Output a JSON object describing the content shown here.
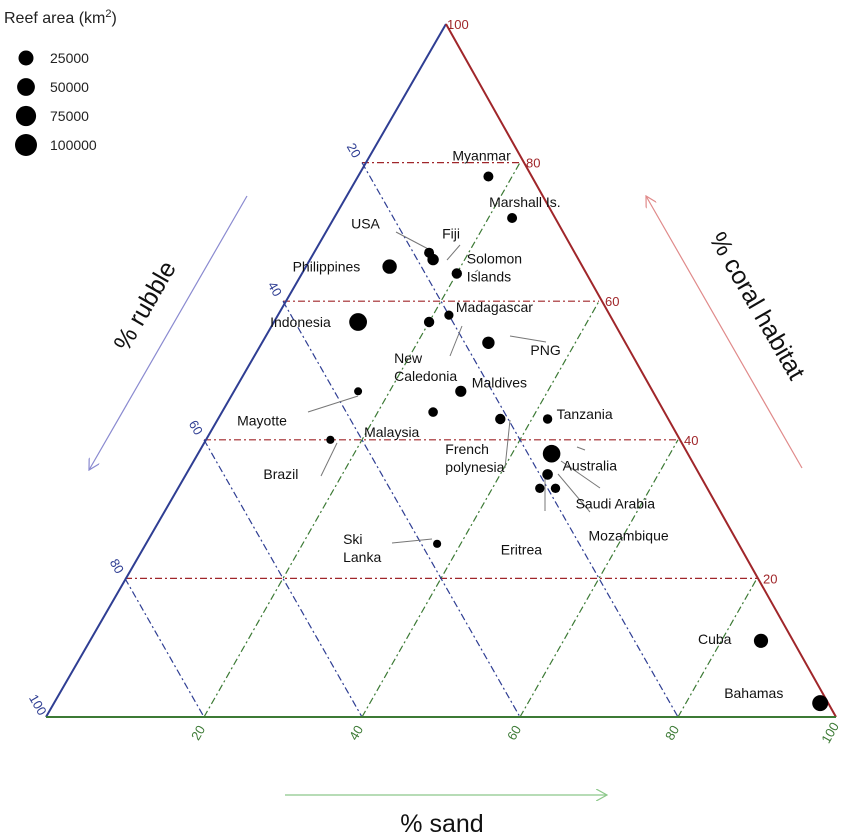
{
  "chart_data": {
    "type": "scatter",
    "subtype": "ternary",
    "title": "",
    "axes": {
      "coral": {
        "label": "% coral habitat",
        "ticks": [
          "20",
          "40",
          "60",
          "80",
          "100"
        ],
        "color": "#a0262a"
      },
      "rubble": {
        "label": "% rubble",
        "ticks": [
          "20",
          "40",
          "60",
          "80",
          "100"
        ],
        "color": "#2f3e93"
      },
      "sand": {
        "label": "% sand",
        "ticks": [
          "20",
          "40",
          "60",
          "80",
          "100"
        ],
        "color": "#3c7a35"
      }
    },
    "legend": {
      "title_prefix": "Reef area (km",
      "title_sup": "2",
      "title_suffix": ")",
      "position": "top-left",
      "entries": [
        {
          "label": "25000",
          "value": 25000
        },
        {
          "label": "50000",
          "value": 50000
        },
        {
          "label": "75000",
          "value": 75000
        },
        {
          "label": "100000",
          "value": 100000
        }
      ]
    },
    "points": [
      {
        "name": [
          "Myanmar"
        ],
        "coral": 78,
        "sand": 17,
        "rubble": 5,
        "area": 5000
      },
      {
        "name": [
          "Marshall Is."
        ],
        "coral": 72,
        "sand": 23,
        "rubble": 5,
        "area": 5000
      },
      {
        "name": [
          "USA"
        ],
        "coral": 67,
        "sand": 15,
        "rubble": 18,
        "area": 5000
      },
      {
        "name": [
          "Fiji"
        ],
        "coral": 66,
        "sand": 16,
        "rubble": 18,
        "area": 10000
      },
      {
        "name": [
          "Philippines"
        ],
        "coral": 65,
        "sand": 11,
        "rubble": 24,
        "area": 25000
      },
      {
        "name": [
          "Solomon",
          "Islands"
        ],
        "coral": 64,
        "sand": 20,
        "rubble": 16,
        "area": 6000
      },
      {
        "name": [
          "Madagascar"
        ],
        "coral": 58,
        "sand": 22,
        "rubble": 20,
        "area": 3000
      },
      {
        "name": [
          "Indonesia"
        ],
        "coral": 57,
        "sand": 11,
        "rubble": 32,
        "area": 51000
      },
      {
        "name": [
          "PNG"
        ],
        "coral": 54,
        "sand": 29,
        "rubble": 17,
        "area": 14000
      },
      {
        "name": [
          "New",
          "Caledonia"
        ],
        "coral": 57,
        "sand": 20,
        "rubble": 23,
        "area": 6000
      },
      {
        "name": [
          "Maldives"
        ],
        "coral": 47,
        "sand": 29,
        "rubble": 24,
        "area": 9000
      },
      {
        "name": [
          "Mayotte"
        ],
        "coral": 47,
        "sand": 16,
        "rubble": 37,
        "area": 1000
      },
      {
        "name": [
          "Malaysia"
        ],
        "coral": 44,
        "sand": 27,
        "rubble": 29,
        "area": 4000
      },
      {
        "name": [
          "French",
          "polynesia"
        ],
        "coral": 43,
        "sand": 36,
        "rubble": 21,
        "area": 6500
      },
      {
        "name": [
          "Tanzania"
        ],
        "coral": 43,
        "sand": 42,
        "rubble": 15,
        "area": 3500
      },
      {
        "name": [
          "Brazil"
        ],
        "coral": 40,
        "sand": 16,
        "rubble": 44,
        "area": 1200
      },
      {
        "name": [
          "Australia"
        ],
        "coral": 38,
        "sand": 45,
        "rubble": 17,
        "area": 49000
      },
      {
        "name": [
          "Saudi Arabia"
        ],
        "coral": 35,
        "sand": 46,
        "rubble": 19,
        "area": 6600
      },
      {
        "name": [
          "Eritrea"
        ],
        "coral": 33,
        "sand": 46,
        "rubble": 21,
        "area": 3300
      },
      {
        "name": [
          "Mozambique"
        ],
        "coral": 33,
        "sand": 48,
        "rubble": 19,
        "area": 3600
      },
      {
        "name": [
          "Ski",
          "Lanka"
        ],
        "coral": 25,
        "sand": 37,
        "rubble": 38,
        "area": 1300
      },
      {
        "name": [
          "Cuba"
        ],
        "coral": 11,
        "sand": 85,
        "rubble": 4,
        "area": 24000
      },
      {
        "name": [
          "Bahamas"
        ],
        "coral": 2,
        "sand": 97,
        "rubble": 1,
        "area": 36000
      }
    ]
  }
}
